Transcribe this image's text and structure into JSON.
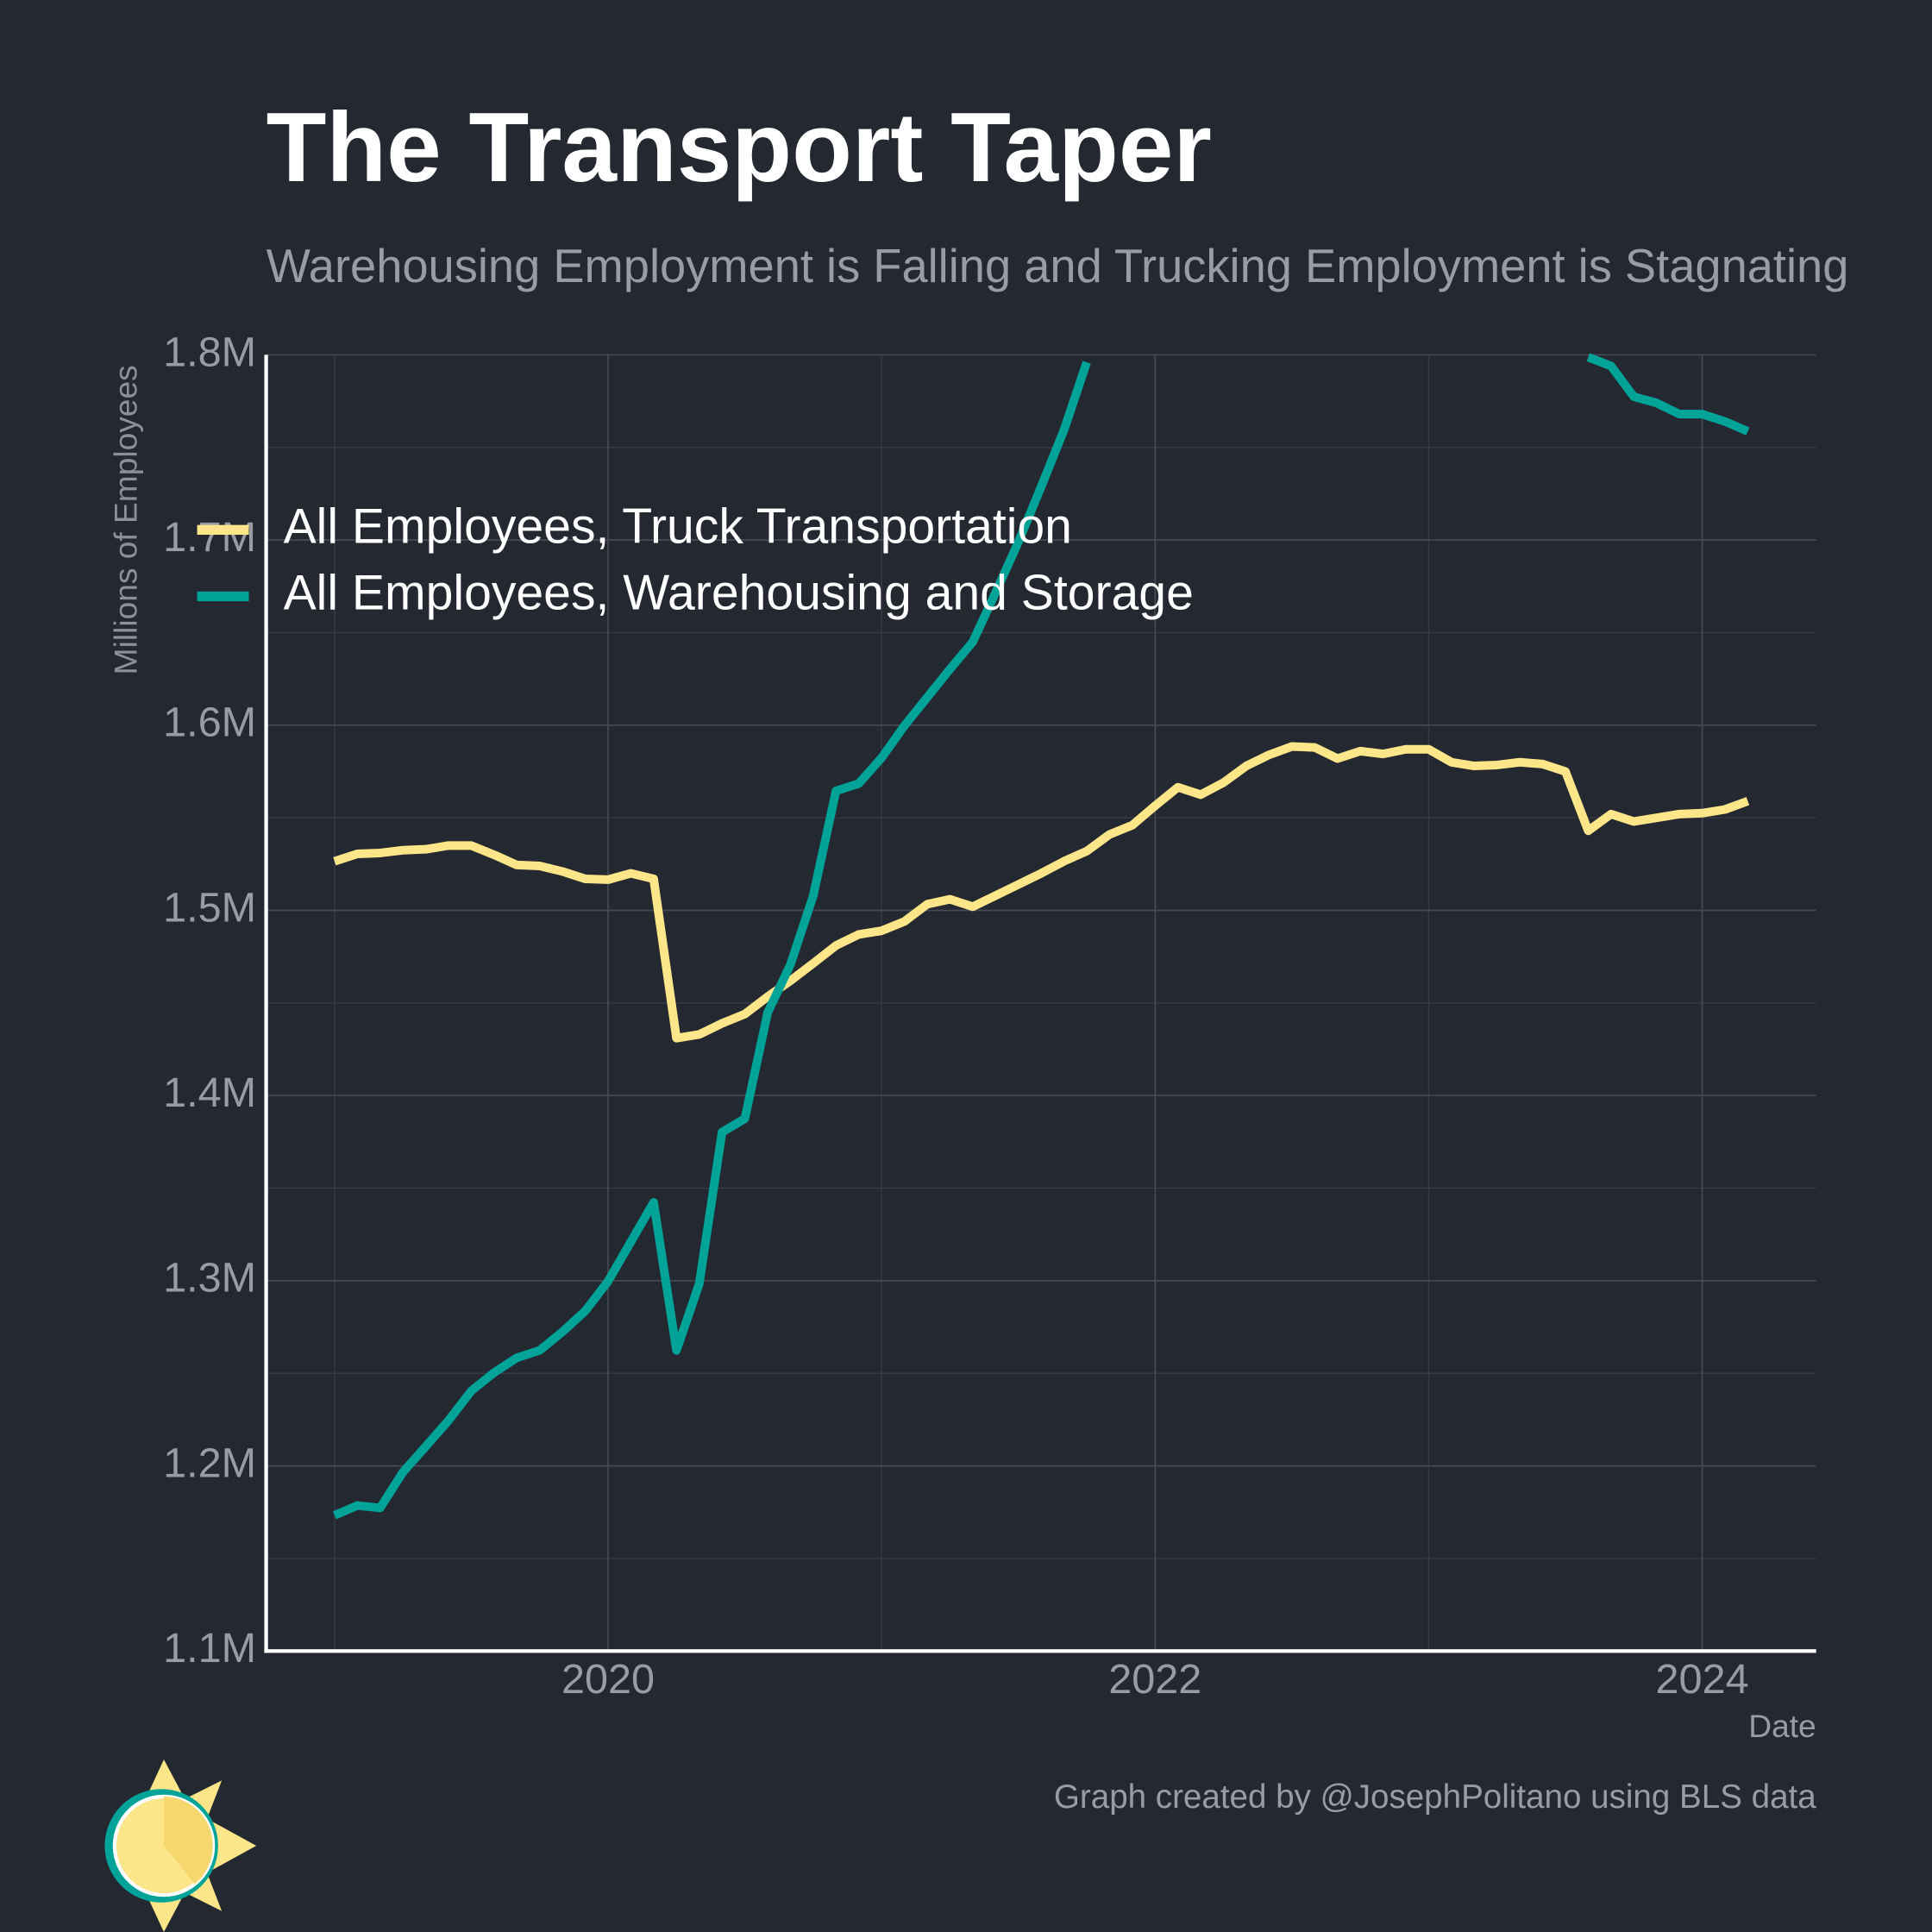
{
  "chart_data": {
    "type": "line",
    "title": "The Transport Taper",
    "subtitle": "Warehousing Employment is Falling and Trucking Employment is Stagnating",
    "y_label": "Millions of Employees",
    "x_label": "Date",
    "caption": "Graph created by @JosephPolitano using BLS data",
    "x": [
      "2019-01",
      "2019-02",
      "2019-03",
      "2019-04",
      "2019-05",
      "2019-06",
      "2019-07",
      "2019-08",
      "2019-09",
      "2019-10",
      "2019-11",
      "2019-12",
      "2020-01",
      "2020-02",
      "2020-03",
      "2020-04",
      "2020-05",
      "2020-06",
      "2020-07",
      "2020-08",
      "2020-09",
      "2020-10",
      "2020-11",
      "2020-12",
      "2021-01",
      "2021-02",
      "2021-03",
      "2021-04",
      "2021-05",
      "2021-06",
      "2021-07",
      "2021-08",
      "2021-09",
      "2021-10",
      "2021-11",
      "2021-12",
      "2022-01",
      "2022-02",
      "2022-03",
      "2022-04",
      "2022-05",
      "2022-06",
      "2022-07",
      "2022-08",
      "2022-09",
      "2022-10",
      "2022-11",
      "2022-12",
      "2023-01",
      "2023-02",
      "2023-03",
      "2023-04",
      "2023-05",
      "2023-06",
      "2023-07",
      "2023-08",
      "2023-09",
      "2023-10",
      "2023-11",
      "2023-12",
      "2024-01",
      "2024-02",
      "2024-03"
    ],
    "series": [
      {
        "name": "All Employees, Truck Transportation",
        "color": "#fde68a",
        "values": [
          1526500,
          1530500,
          1531000,
          1532500,
          1533000,
          1535000,
          1535000,
          1530000,
          1524500,
          1524000,
          1521000,
          1517000,
          1516600,
          1520000,
          1517000,
          1431000,
          1433000,
          1439000,
          1444000,
          1453400,
          1462000,
          1471400,
          1481000,
          1487000,
          1489000,
          1494000,
          1503300,
          1506000,
          1502000,
          1508000,
          1514000,
          1520000,
          1526500,
          1532000,
          1541000,
          1546000,
          1556500,
          1566500,
          1562500,
          1569000,
          1578000,
          1584000,
          1588500,
          1588000,
          1582000,
          1586000,
          1584500,
          1587000,
          1587000,
          1580000,
          1578000,
          1578500,
          1580000,
          1579000,
          1575000,
          1543000,
          1552000,
          1548000,
          1550000,
          1552000,
          1552500,
          1554500,
          1559000
        ]
      },
      {
        "name": "All Employees, Warehousing and Storage",
        "color": "#00a398",
        "values": [
          1173300,
          1178600,
          1177300,
          1196600,
          1210500,
          1224500,
          1240500,
          1250400,
          1258400,
          1262400,
          1272400,
          1283700,
          1299700,
          1321000,
          1342300,
          1262400,
          1298300,
          1380200,
          1387500,
          1444700,
          1470700,
          1507900,
          1564500,
          1568500,
          1582400,
          1599700,
          1615000,
          1630300,
          1645000,
          1671600,
          1698900,
          1728800,
          1759400,
          1796000,
          null,
          null,
          null,
          null,
          null,
          null,
          null,
          null,
          null,
          null,
          null,
          null,
          null,
          null,
          null,
          null,
          null,
          null,
          null,
          null,
          null,
          1798700,
          1794000,
          1777400,
          1774000,
          1768000,
          1768000,
          1764000,
          1758700
        ]
      }
    ],
    "xlim": [
      "2018-10",
      "2024-06"
    ],
    "xticks": [
      {
        "value": "2020-01",
        "label": "2020"
      },
      {
        "value": "2022-01",
        "label": "2022"
      },
      {
        "value": "2024-01",
        "label": "2024"
      }
    ],
    "x_minor_ticks": [
      "2019-01",
      "2021-01",
      "2023-01"
    ],
    "ylim": [
      1100000,
      1800000
    ],
    "yticks": [
      {
        "value": 1100000,
        "label": "1.1M"
      },
      {
        "value": 1200000,
        "label": "1.2M"
      },
      {
        "value": 1300000,
        "label": "1.3M"
      },
      {
        "value": 1400000,
        "label": "1.4M"
      },
      {
        "value": 1500000,
        "label": "1.5M"
      },
      {
        "value": 1600000,
        "label": "1.6M"
      },
      {
        "value": 1700000,
        "label": "1.7M"
      },
      {
        "value": 1800000,
        "label": "1.8M"
      }
    ],
    "y_minor_ticks": [
      1150000,
      1250000,
      1350000,
      1450000,
      1550000,
      1650000,
      1750000
    ],
    "grid": true,
    "legend": "upper left"
  }
}
